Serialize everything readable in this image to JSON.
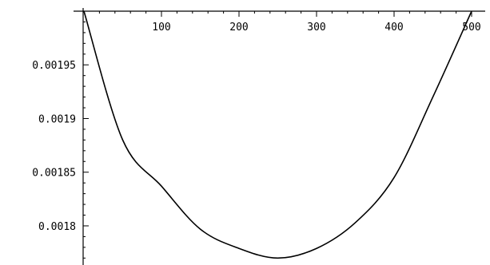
{
  "chart_data": {
    "type": "line",
    "title": "",
    "xlabel": "",
    "ylabel": "",
    "xlim": [
      0,
      500
    ],
    "ylim": [
      0.001768,
      0.002
    ],
    "x_ticks": [
      100,
      200,
      300,
      400,
      500
    ],
    "x_tick_labels": [
      "100",
      "200",
      "300",
      "400",
      "500"
    ],
    "y_ticks": [
      0.0018,
      0.00185,
      0.0019,
      0.00195
    ],
    "y_tick_labels": [
      "0.0018",
      "0.00185",
      "0.0019",
      "0.00195"
    ],
    "x_minor_step": 20,
    "y_minor_step": 1e-05,
    "x_axis_position": "top",
    "grid": false,
    "legend": "none",
    "series": [
      {
        "x": [
          0,
          50,
          100,
          150,
          200,
          250,
          300,
          350,
          400,
          450,
          500
        ],
        "values": [
          0.002,
          0.00188,
          0.001837,
          0.001797,
          0.001779,
          0.00177,
          0.001779,
          0.001803,
          0.001845,
          0.00192,
          0.002
        ]
      }
    ]
  }
}
